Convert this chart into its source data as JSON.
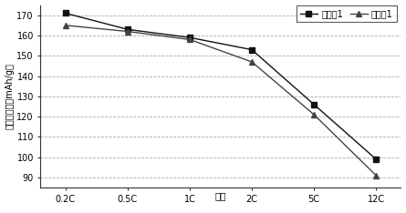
{
  "x_labels": [
    "0.2C",
    "0.5C",
    "1C",
    "倍率",
    "2C",
    "5C",
    "12C"
  ],
  "x_positions": [
    0,
    1,
    2,
    2.5,
    3,
    4,
    5
  ],
  "series": [
    {
      "name": "实施例1",
      "x_positions": [
        0,
        1,
        2,
        3,
        4,
        5
      ],
      "values": [
        171,
        163,
        159,
        153,
        126,
        99
      ],
      "color": "#111111",
      "marker": "s",
      "markersize": 4
    },
    {
      "name": "对比例1",
      "x_positions": [
        0,
        1,
        2,
        3,
        4,
        5
      ],
      "values": [
        165,
        162,
        158,
        147,
        121,
        91
      ],
      "color": "#444444",
      "marker": "^",
      "markersize": 4
    }
  ],
  "ylabel": "放电比容量（mAh/g）",
  "ylim": [
    85,
    175
  ],
  "yticks": [
    90,
    100,
    110,
    120,
    130,
    140,
    150,
    160,
    170
  ],
  "xlim": [
    -0.4,
    5.4
  ],
  "grid_color": "#aaaaaa",
  "background_color": "#ffffff",
  "tick_fontsize": 7,
  "legend_fontsize": 7
}
